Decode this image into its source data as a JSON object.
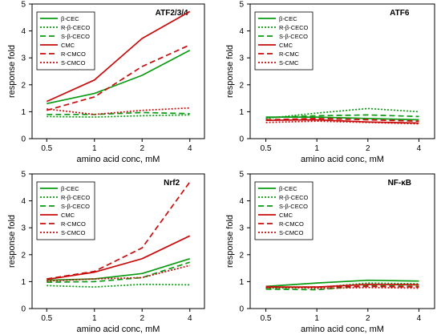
{
  "colors": {
    "green": "#0a9b12",
    "red": "#c80c0c",
    "axis": "#000000"
  },
  "chart_data": [
    {
      "type": "line",
      "title": "ATF2/3/4",
      "xlabel": "amino acid conc, mM",
      "ylabel": "response fold",
      "categories": [
        "0.5",
        "1",
        "2",
        "4"
      ],
      "ylim": [
        0,
        5
      ],
      "yticks": [
        "0",
        "1",
        "2",
        "3",
        "4",
        "5"
      ],
      "grid": false,
      "legend_position": "top-left",
      "series": [
        {
          "name": "β-CEC",
          "color": "#0a9b12",
          "dash": "solid",
          "values": [
            1.3,
            1.68,
            2.35,
            3.28
          ]
        },
        {
          "name": "R-β-CECO",
          "color": "#0a9b12",
          "dash": "dotted",
          "values": [
            0.82,
            0.8,
            0.85,
            0.88
          ]
        },
        {
          "name": "S-β-CECO",
          "color": "#0a9b12",
          "dash": "dashed",
          "values": [
            0.9,
            0.9,
            0.97,
            0.93
          ]
        },
        {
          "name": "CMC",
          "color": "#c80c0c",
          "dash": "solid",
          "values": [
            1.38,
            2.18,
            3.72,
            4.72
          ]
        },
        {
          "name": "R-CMCO",
          "color": "#c80c0c",
          "dash": "dashed",
          "values": [
            1.05,
            1.55,
            2.68,
            3.48
          ]
        },
        {
          "name": "S-CMCO",
          "color": "#c80c0c",
          "dash": "dotted",
          "values": [
            1.1,
            0.9,
            1.05,
            1.14
          ]
        }
      ]
    },
    {
      "type": "line",
      "title": "ATF6",
      "xlabel": "amino acid conc, mM",
      "ylabel": "response fold",
      "categories": [
        "0.5",
        "1",
        "2",
        "4"
      ],
      "ylim": [
        0,
        5
      ],
      "yticks": [
        "0",
        "1",
        "2",
        "3",
        "4",
        "5"
      ],
      "grid": false,
      "legend_position": "top-left",
      "series": [
        {
          "name": "β-CEC",
          "color": "#0a9b12",
          "dash": "solid",
          "values": [
            0.8,
            0.8,
            0.75,
            0.7
          ]
        },
        {
          "name": "R-β-CECO",
          "color": "#0a9b12",
          "dash": "dotted",
          "values": [
            0.75,
            0.95,
            1.12,
            1.0
          ]
        },
        {
          "name": "S-β-CECO",
          "color": "#0a9b12",
          "dash": "dashed",
          "values": [
            0.78,
            0.85,
            0.88,
            0.82
          ]
        },
        {
          "name": "CMC",
          "color": "#c80c0c",
          "dash": "solid",
          "values": [
            0.68,
            0.7,
            0.62,
            0.58
          ]
        },
        {
          "name": "R-CMC",
          "color": "#c80c0c",
          "dash": "dashed",
          "values": [
            0.7,
            0.75,
            0.7,
            0.65
          ]
        },
        {
          "name": "S-CMC",
          "color": "#c80c0c",
          "dash": "dotted",
          "values": [
            0.6,
            0.65,
            0.6,
            0.55
          ]
        }
      ]
    },
    {
      "type": "line",
      "title": "Nrf2",
      "xlabel": "amino acid conc, mM",
      "ylabel": "response fold",
      "categories": [
        "0.5",
        "1",
        "2",
        "4"
      ],
      "ylim": [
        0,
        5
      ],
      "yticks": [
        "0",
        "1",
        "2",
        "3",
        "4",
        "5"
      ],
      "grid": false,
      "legend_position": "top-left",
      "series": [
        {
          "name": "β-CEC",
          "color": "#0a9b12",
          "dash": "solid",
          "values": [
            1.05,
            1.1,
            1.3,
            1.85
          ]
        },
        {
          "name": "R-β-CECO",
          "color": "#0a9b12",
          "dash": "dotted",
          "values": [
            0.85,
            0.8,
            0.9,
            0.88
          ]
        },
        {
          "name": "S-β-CECO",
          "color": "#0a9b12",
          "dash": "dashed",
          "values": [
            0.98,
            1.0,
            1.15,
            1.72
          ]
        },
        {
          "name": "CMC",
          "color": "#c80c0c",
          "dash": "solid",
          "values": [
            1.08,
            1.35,
            1.85,
            2.7
          ]
        },
        {
          "name": "R-CMCO",
          "color": "#c80c0c",
          "dash": "dashed",
          "values": [
            1.1,
            1.38,
            2.25,
            4.7
          ]
        },
        {
          "name": "S-CMCO",
          "color": "#c80c0c",
          "dash": "dotted",
          "values": [
            1.02,
            1.1,
            1.15,
            1.6
          ]
        }
      ]
    },
    {
      "type": "line",
      "title": "NF-κB",
      "xlabel": "amino acid conc, mM",
      "ylabel": "response fold",
      "categories": [
        "0.5",
        "1",
        "2",
        "4"
      ],
      "ylim": [
        0,
        5
      ],
      "yticks": [
        "0",
        "1",
        "2",
        "3",
        "4",
        "5"
      ],
      "grid": false,
      "legend_position": "top-left",
      "series": [
        {
          "name": "β-CEC",
          "color": "#0a9b12",
          "dash": "solid",
          "values": [
            0.82,
            0.95,
            1.05,
            1.02
          ]
        },
        {
          "name": "R-β-CECO",
          "color": "#0a9b12",
          "dash": "dotted",
          "values": [
            0.75,
            0.78,
            0.95,
            0.92
          ]
        },
        {
          "name": "S-β-CECO",
          "color": "#0a9b12",
          "dash": "dashed",
          "values": [
            0.72,
            0.7,
            0.85,
            0.82
          ]
        },
        {
          "name": "CMC",
          "color": "#c80c0c",
          "dash": "solid",
          "values": [
            0.8,
            0.8,
            0.9,
            0.88
          ]
        },
        {
          "name": "R-CMCO",
          "color": "#c80c0c",
          "dash": "dashed",
          "values": [
            0.78,
            0.8,
            0.82,
            0.8
          ]
        },
        {
          "name": "S-CMCO",
          "color": "#c80c0c",
          "dash": "dotted",
          "values": [
            0.82,
            0.75,
            0.78,
            0.76
          ]
        }
      ]
    }
  ]
}
